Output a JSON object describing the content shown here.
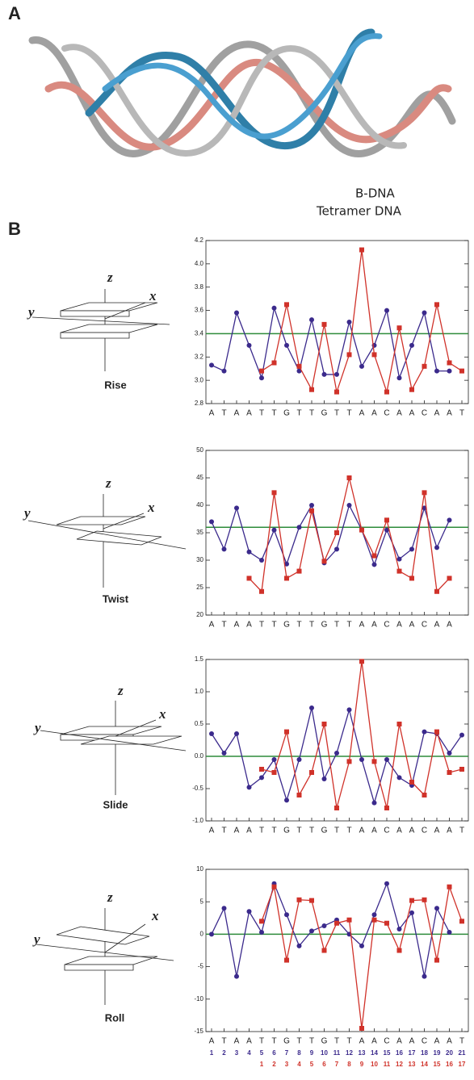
{
  "figure": {
    "panel_a_label": "A",
    "legend": [
      {
        "name": "B-DNA",
        "color": "#a9a9a9"
      },
      {
        "name": "Tetramer DNA",
        "color": "#3f8fc4"
      }
    ],
    "panel_b_label": "B",
    "diagrams": [
      {
        "label": "Rise",
        "axes": [
          "z",
          "x",
          "y"
        ]
      },
      {
        "label": "Twist",
        "axes": [
          "z",
          "x",
          "y"
        ]
      },
      {
        "label": "Slide",
        "axes": [
          "z",
          "x",
          "y"
        ]
      },
      {
        "label": "Roll",
        "axes": [
          "z",
          "x",
          "y"
        ]
      }
    ]
  },
  "chart_data": [
    {
      "type": "line",
      "categories": [
        "A",
        "T",
        "A",
        "A",
        "T",
        "T",
        "G",
        "T",
        "T",
        "G",
        "T",
        "T",
        "A",
        "A",
        "C",
        "A",
        "A",
        "C",
        "A",
        "A",
        "T"
      ],
      "ylim": [
        2.8,
        4.2
      ],
      "yticks": [
        2.8,
        {
          "value": 3,
          "label": "3.0"
        },
        3.2,
        3.4,
        3.6,
        3.8,
        {
          "value": 4,
          "label": "4.0"
        },
        4.2
      ],
      "reference": 3.4,
      "reference_color": "#2e8b3a",
      "series": [
        {
          "color": "#3b2a8c",
          "marker": "circle",
          "values": [
            3.13,
            3.08,
            3.58,
            3.3,
            3.02,
            3.62,
            3.3,
            3.08,
            3.52,
            3.05,
            3.05,
            3.5,
            3.12,
            3.3,
            3.6,
            3.02,
            3.3,
            3.58,
            3.08,
            3.08,
            null
          ]
        },
        {
          "color": "#d0322a",
          "marker": "square",
          "values": [
            null,
            null,
            null,
            null,
            3.08,
            3.15,
            3.65,
            3.12,
            2.92,
            3.48,
            2.9,
            3.22,
            4.12,
            3.22,
            2.9,
            3.45,
            2.92,
            3.12,
            3.65,
            3.15,
            3.08
          ]
        }
      ]
    },
    {
      "type": "line",
      "categories": [
        "A",
        "T",
        "A",
        "A",
        "T",
        "T",
        "G",
        "T",
        "T",
        "G",
        "T",
        "T",
        "A",
        "A",
        "C",
        "A",
        "A",
        "C",
        "A",
        "A"
      ],
      "ylim": [
        20,
        50
      ],
      "yticks": [
        20,
        25,
        30,
        35,
        40,
        45,
        50
      ],
      "reference": 36,
      "reference_color": "#2e8b3a",
      "series": [
        {
          "color": "#3b2a8c",
          "marker": "circle",
          "values": [
            37,
            32,
            39.5,
            31.5,
            30,
            35.5,
            29.3,
            36,
            40,
            29.5,
            32,
            40,
            35.5,
            29.2,
            35.5,
            30.2,
            32,
            39.5,
            32.3,
            37.3
          ]
        },
        {
          "color": "#d0322a",
          "marker": "square",
          "values": [
            null,
            null,
            null,
            26.7,
            24.3,
            42.3,
            26.7,
            28,
            39,
            29.8,
            35,
            45,
            35.5,
            30.8,
            37.3,
            28,
            26.7,
            42.3,
            24.3,
            26.7
          ]
        }
      ]
    },
    {
      "type": "line",
      "categories": [
        "A",
        "T",
        "A",
        "A",
        "T",
        "T",
        "G",
        "T",
        "T",
        "G",
        "T",
        "T",
        "A",
        "A",
        "C",
        "A",
        "A",
        "C",
        "A",
        "A",
        "T"
      ],
      "ylim": [
        -1,
        1.5
      ],
      "yticks": [
        {
          "value": -1,
          "label": "-1.0"
        },
        -0.5,
        {
          "value": 0,
          "label": "0.0"
        },
        0.5,
        {
          "value": 1,
          "label": "1.0"
        },
        1.5
      ],
      "reference": 0,
      "reference_color": "#2e8b3a",
      "series": [
        {
          "color": "#3b2a8c",
          "marker": "circle",
          "values": [
            0.35,
            0.05,
            0.35,
            -0.48,
            -0.33,
            -0.05,
            -0.68,
            -0.05,
            0.75,
            -0.35,
            0.05,
            0.72,
            -0.05,
            -0.72,
            -0.05,
            -0.33,
            -0.45,
            0.38,
            0.35,
            0.05,
            0.33
          ]
        },
        {
          "color": "#d0322a",
          "marker": "square",
          "values": [
            null,
            null,
            null,
            null,
            -0.2,
            -0.25,
            0.38,
            -0.6,
            -0.25,
            0.5,
            -0.8,
            -0.08,
            1.47,
            -0.08,
            -0.8,
            0.5,
            -0.4,
            -0.6,
            0.38,
            -0.25,
            -0.2
          ]
        }
      ]
    },
    {
      "type": "line",
      "categories": [
        "A",
        "T",
        "A",
        "A",
        "T",
        "T",
        "G",
        "T",
        "T",
        "G",
        "T",
        "T",
        "A",
        "A",
        "C",
        "A",
        "A",
        "C",
        "A",
        "A",
        "T"
      ],
      "ylim": [
        -15,
        10
      ],
      "yticks": [
        -15,
        -10,
        -5,
        0,
        5,
        10
      ],
      "reference": 0,
      "reference_color": "#2e8b3a",
      "series": [
        {
          "color": "#3b2a8c",
          "marker": "circle",
          "values": [
            0,
            4,
            -6.5,
            3.5,
            0.3,
            7.8,
            3,
            -1.8,
            0.5,
            1.3,
            2.2,
            0,
            -1.8,
            3,
            7.8,
            0.8,
            3.3,
            -6.5,
            4,
            0.3,
            null
          ]
        },
        {
          "color": "#d0322a",
          "marker": "square",
          "values": [
            null,
            null,
            null,
            null,
            2,
            7.3,
            -4,
            5.3,
            5.2,
            -2.5,
            1.7,
            2.2,
            -14.5,
            2.2,
            1.7,
            -2.5,
            5.2,
            5.3,
            -4,
            7.3,
            2
          ]
        }
      ],
      "index_rows": [
        {
          "color": "#3b2a8c",
          "labels": [
            1,
            2,
            3,
            4,
            5,
            6,
            7,
            8,
            9,
            10,
            11,
            12,
            13,
            14,
            15,
            16,
            17,
            18,
            19,
            20,
            21
          ]
        },
        {
          "color": "#d0322a",
          "labels": [
            null,
            null,
            null,
            null,
            1,
            2,
            3,
            4,
            5,
            6,
            7,
            8,
            9,
            10,
            11,
            12,
            13,
            14,
            15,
            16,
            17
          ]
        }
      ]
    }
  ]
}
